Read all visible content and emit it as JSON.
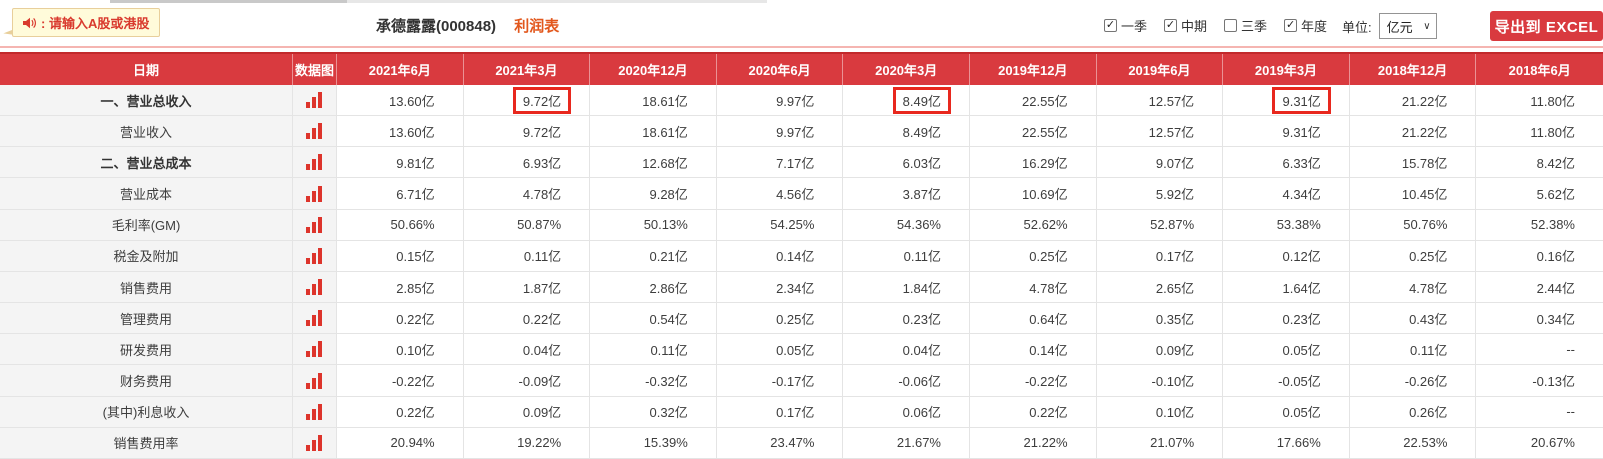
{
  "toolbar": {
    "notice_bubble": {
      "text": ": 请输入A股或港股"
    },
    "stock_title": "承德露露(000848)",
    "report_tab": "利润表",
    "period_filters": [
      {
        "label": "一季",
        "checked": true
      },
      {
        "label": "中期",
        "checked": true
      },
      {
        "label": "三季",
        "checked": false
      },
      {
        "label": "年度",
        "checked": true
      }
    ],
    "unit_label": "单位:",
    "unit_value": "亿元",
    "export_button": "导出到 EXCEL"
  },
  "table": {
    "columns": [
      "日期",
      "数据图",
      "2021年6月",
      "2021年3月",
      "2020年12月",
      "2020年6月",
      "2020年3月",
      "2019年12月",
      "2019年6月",
      "2019年3月",
      "2018年12月",
      "2018年6月"
    ],
    "rows": [
      {
        "label": "一、营业总收入",
        "bold": true,
        "highlight_cols": [
          1,
          4,
          7
        ],
        "values": [
          "13.60亿",
          "9.72亿",
          "18.61亿",
          "9.97亿",
          "8.49亿",
          "22.55亿",
          "12.57亿",
          "9.31亿",
          "21.22亿",
          "11.80亿"
        ]
      },
      {
        "label": "营业收入",
        "bold": false,
        "values": [
          "13.60亿",
          "9.72亿",
          "18.61亿",
          "9.97亿",
          "8.49亿",
          "22.55亿",
          "12.57亿",
          "9.31亿",
          "21.22亿",
          "11.80亿"
        ]
      },
      {
        "label": "二、营业总成本",
        "bold": true,
        "values": [
          "9.81亿",
          "6.93亿",
          "12.68亿",
          "7.17亿",
          "6.03亿",
          "16.29亿",
          "9.07亿",
          "6.33亿",
          "15.78亿",
          "8.42亿"
        ]
      },
      {
        "label": "营业成本",
        "bold": false,
        "values": [
          "6.71亿",
          "4.78亿",
          "9.28亿",
          "4.56亿",
          "3.87亿",
          "10.69亿",
          "5.92亿",
          "4.34亿",
          "10.45亿",
          "5.62亿"
        ]
      },
      {
        "label": "毛利率(GM)",
        "bold": false,
        "values": [
          "50.66%",
          "50.87%",
          "50.13%",
          "54.25%",
          "54.36%",
          "52.62%",
          "52.87%",
          "53.38%",
          "50.76%",
          "52.38%"
        ]
      },
      {
        "label": "税金及附加",
        "bold": false,
        "values": [
          "0.15亿",
          "0.11亿",
          "0.21亿",
          "0.14亿",
          "0.11亿",
          "0.25亿",
          "0.17亿",
          "0.12亿",
          "0.25亿",
          "0.16亿"
        ]
      },
      {
        "label": "销售费用",
        "bold": false,
        "values": [
          "2.85亿",
          "1.87亿",
          "2.86亿",
          "2.34亿",
          "1.84亿",
          "4.78亿",
          "2.65亿",
          "1.64亿",
          "4.78亿",
          "2.44亿"
        ]
      },
      {
        "label": "管理费用",
        "bold": false,
        "values": [
          "0.22亿",
          "0.22亿",
          "0.54亿",
          "0.25亿",
          "0.23亿",
          "0.64亿",
          "0.35亿",
          "0.23亿",
          "0.43亿",
          "0.34亿"
        ]
      },
      {
        "label": "研发费用",
        "bold": false,
        "values": [
          "0.10亿",
          "0.04亿",
          "0.11亿",
          "0.05亿",
          "0.04亿",
          "0.14亿",
          "0.09亿",
          "0.05亿",
          "0.11亿",
          "--"
        ]
      },
      {
        "label": "财务费用",
        "bold": false,
        "values": [
          "-0.22亿",
          "-0.09亿",
          "-0.32亿",
          "-0.17亿",
          "-0.06亿",
          "-0.22亿",
          "-0.10亿",
          "-0.05亿",
          "-0.26亿",
          "-0.13亿"
        ]
      },
      {
        "label": "(其中)利息收入",
        "bold": false,
        "values": [
          "0.22亿",
          "0.09亿",
          "0.32亿",
          "0.17亿",
          "0.06亿",
          "0.22亿",
          "0.10亿",
          "0.05亿",
          "0.26亿",
          "--"
        ]
      },
      {
        "label": "销售费用率",
        "bold": false,
        "values": [
          "20.94%",
          "19.22%",
          "15.39%",
          "23.47%",
          "21.67%",
          "21.22%",
          "21.07%",
          "17.66%",
          "22.53%",
          "20.67%"
        ]
      }
    ]
  },
  "colors": {
    "accent_red": "#d93a3f",
    "highlight_box_red": "#e8281e",
    "bar_icon_red": "#dd342b",
    "tab_orange": "#e2571c",
    "bubble_text_red": "#d93a2e",
    "divider_salmon": "#f5b5b1"
  },
  "icons": {
    "notice": "megaphone-icon",
    "row_chart": "bar-chart-icon",
    "select_arrow": "chevron-down-icon",
    "checkbox_check": "✓"
  }
}
